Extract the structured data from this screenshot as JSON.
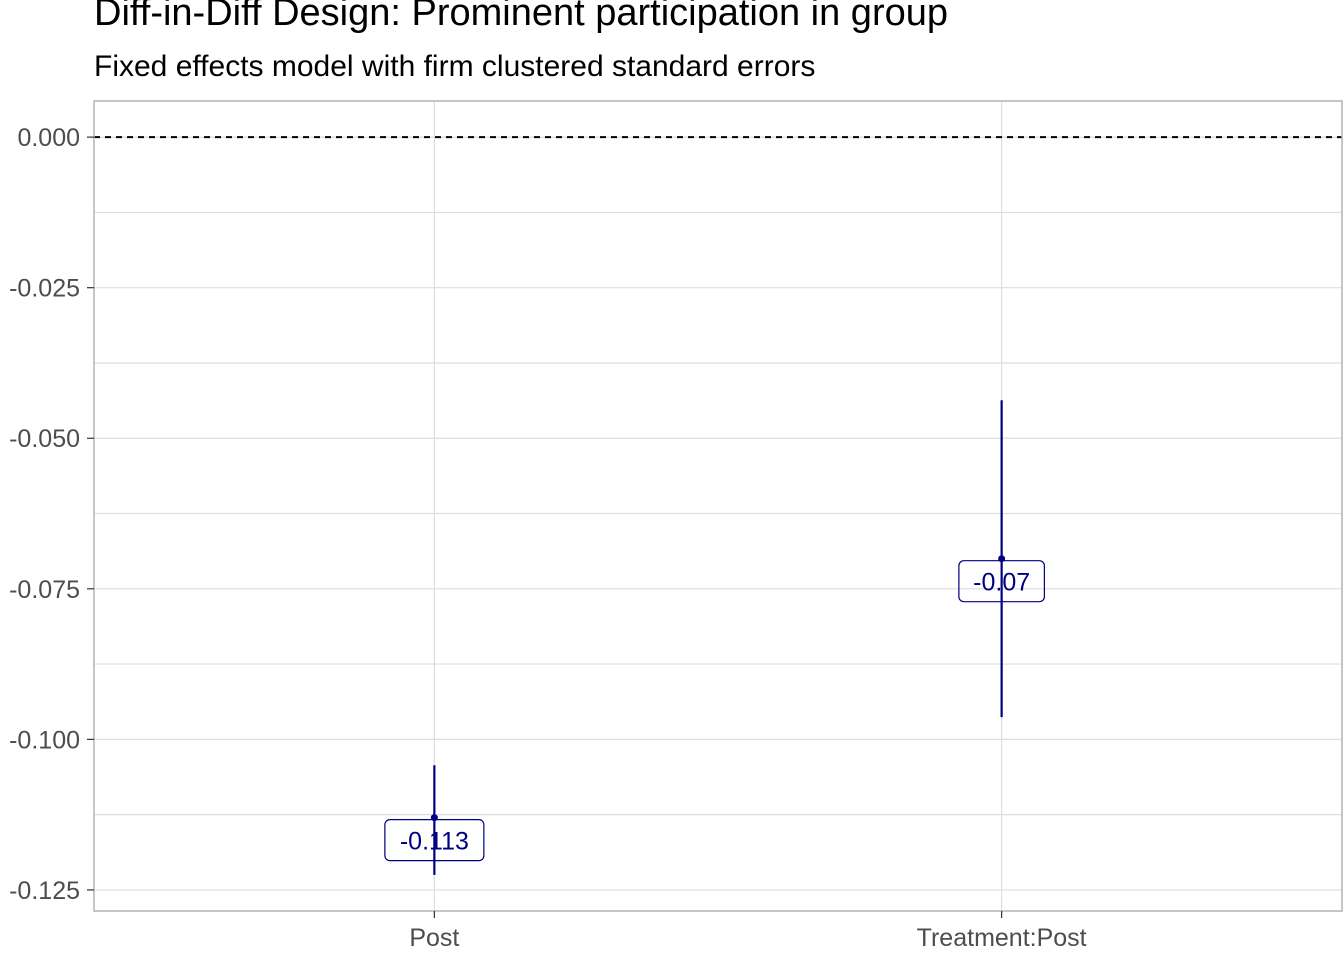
{
  "chart_data": {
    "type": "scatter",
    "title": "Diff-in-Diff Design: Prominent participation in group",
    "subtitle": "Fixed effects model with firm clustered standard errors",
    "xlabel": "",
    "ylabel": "",
    "categories": [
      "Post",
      "Treatment:Post"
    ],
    "estimates": [
      -0.113,
      -0.07
    ],
    "ci_lower": [
      -0.1225,
      -0.0963
    ],
    "ci_upper": [
      -0.1043,
      -0.0437
    ],
    "data_labels": [
      "-0.113",
      "-0.07"
    ],
    "reference_line": 0.0,
    "ylim": [
      -0.1285,
      0.006
    ],
    "y_ticks": [
      0.0,
      -0.025,
      -0.05,
      -0.075,
      -0.1,
      -0.125
    ],
    "y_tick_labels": [
      "0.000",
      "-0.025",
      "-0.050",
      "-0.075",
      "-0.100",
      "-0.125"
    ],
    "grid": true,
    "legend": "none",
    "colors": {
      "point": "#000080",
      "label_text": "#000080",
      "reference_line": "#000000",
      "grid": "#dedede",
      "panel_border": "#b3b3b3",
      "tick_text": "#4d4d4d"
    }
  }
}
